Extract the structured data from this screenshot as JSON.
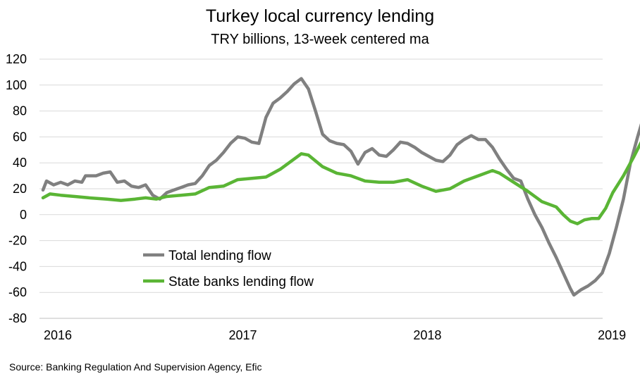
{
  "chart_data": {
    "type": "line",
    "title": "Turkey local currency lending",
    "subtitle": "TRY billions, 13-week centered ma",
    "xlabel": "",
    "ylabel": "",
    "ylim": [
      -80,
      120
    ],
    "yticks": [
      120,
      100,
      80,
      60,
      40,
      20,
      0,
      -20,
      -40,
      -60,
      -80
    ],
    "yticks_labels": [
      "120",
      "100",
      "80",
      "60",
      "40",
      "20",
      "0",
      "-20",
      "-40",
      "-60",
      "-80"
    ],
    "xlim": [
      "2016-01-01",
      "2019-03-01"
    ],
    "xtick_labels": [
      {
        "label": "2016",
        "date": "2016-01-01"
      },
      {
        "label": "2017",
        "date": "2017-01-01"
      },
      {
        "label": "2018",
        "date": "2018-01-01"
      },
      {
        "label": "2019",
        "date": "2019-01-01"
      }
    ],
    "grid": true,
    "legend_position": "lower-left",
    "series": [
      {
        "name": "Total lending flow",
        "color": "#808080",
        "points": [
          [
            "2016-01-01",
            19
          ],
          [
            "2016-01-08",
            26
          ],
          [
            "2016-01-22",
            23
          ],
          [
            "2016-02-05",
            25
          ],
          [
            "2016-02-19",
            23
          ],
          [
            "2016-03-04",
            26
          ],
          [
            "2016-03-18",
            25
          ],
          [
            "2016-03-25",
            30
          ],
          [
            "2016-04-15",
            30
          ],
          [
            "2016-04-29",
            32
          ],
          [
            "2016-05-13",
            33
          ],
          [
            "2016-05-27",
            25
          ],
          [
            "2016-06-10",
            26
          ],
          [
            "2016-06-24",
            22
          ],
          [
            "2016-07-08",
            21
          ],
          [
            "2016-07-22",
            23
          ],
          [
            "2016-08-05",
            15
          ],
          [
            "2016-08-19",
            12
          ],
          [
            "2016-09-02",
            17
          ],
          [
            "2016-09-16",
            19
          ],
          [
            "2016-09-30",
            21
          ],
          [
            "2016-10-14",
            23
          ],
          [
            "2016-10-28",
            24
          ],
          [
            "2016-11-11",
            30
          ],
          [
            "2016-11-25",
            38
          ],
          [
            "2016-12-09",
            42
          ],
          [
            "2016-12-23",
            48
          ],
          [
            "2017-01-06",
            55
          ],
          [
            "2017-01-20",
            60
          ],
          [
            "2017-02-03",
            59
          ],
          [
            "2017-02-17",
            56
          ],
          [
            "2017-03-03",
            55
          ],
          [
            "2017-03-17",
            75
          ],
          [
            "2017-03-31",
            86
          ],
          [
            "2017-04-14",
            90
          ],
          [
            "2017-04-28",
            95
          ],
          [
            "2017-05-12",
            101
          ],
          [
            "2017-05-26",
            105
          ],
          [
            "2017-06-09",
            97
          ],
          [
            "2017-06-23",
            80
          ],
          [
            "2017-07-07",
            62
          ],
          [
            "2017-07-21",
            57
          ],
          [
            "2017-08-04",
            55
          ],
          [
            "2017-08-18",
            54
          ],
          [
            "2017-09-01",
            49
          ],
          [
            "2017-09-15",
            39
          ],
          [
            "2017-09-29",
            48
          ],
          [
            "2017-10-13",
            51
          ],
          [
            "2017-10-27",
            46
          ],
          [
            "2017-11-10",
            45
          ],
          [
            "2017-11-24",
            50
          ],
          [
            "2017-12-08",
            56
          ],
          [
            "2017-12-22",
            55
          ],
          [
            "2018-01-05",
            52
          ],
          [
            "2018-01-19",
            48
          ],
          [
            "2018-02-02",
            45
          ],
          [
            "2018-02-16",
            42
          ],
          [
            "2018-03-02",
            41
          ],
          [
            "2018-03-16",
            46
          ],
          [
            "2018-03-30",
            54
          ],
          [
            "2018-04-13",
            58
          ],
          [
            "2018-04-27",
            61
          ],
          [
            "2018-05-11",
            58
          ],
          [
            "2018-05-25",
            58
          ],
          [
            "2018-06-08",
            52
          ],
          [
            "2018-06-22",
            43
          ],
          [
            "2018-07-06",
            35
          ],
          [
            "2018-07-20",
            28
          ],
          [
            "2018-08-03",
            26
          ],
          [
            "2018-08-17",
            12
          ],
          [
            "2018-08-31",
            0
          ],
          [
            "2018-09-14",
            -10
          ],
          [
            "2018-09-28",
            -22
          ],
          [
            "2018-10-12",
            -33
          ],
          [
            "2018-10-26",
            -45
          ],
          [
            "2018-11-09",
            -57
          ],
          [
            "2018-11-16",
            -62
          ],
          [
            "2018-11-30",
            -58
          ],
          [
            "2018-12-14",
            -55
          ],
          [
            "2018-12-28",
            -51
          ],
          [
            "2019-01-11",
            -45
          ],
          [
            "2019-01-25",
            -30
          ],
          [
            "2019-02-08",
            -10
          ],
          [
            "2019-02-22",
            12
          ],
          [
            "2019-03-08",
            40
          ],
          [
            "2019-03-22",
            60
          ],
          [
            "2019-04-01",
            73
          ]
        ]
      },
      {
        "name": "State banks lending flow",
        "color": "#5ab535",
        "points": [
          [
            "2016-01-01",
            13
          ],
          [
            "2016-01-15",
            16
          ],
          [
            "2016-02-05",
            15
          ],
          [
            "2016-03-04",
            14
          ],
          [
            "2016-04-01",
            13
          ],
          [
            "2016-05-06",
            12
          ],
          [
            "2016-06-03",
            11
          ],
          [
            "2016-07-01",
            12
          ],
          [
            "2016-07-22",
            13
          ],
          [
            "2016-08-12",
            12
          ],
          [
            "2016-09-02",
            14
          ],
          [
            "2016-09-30",
            15
          ],
          [
            "2016-10-28",
            16
          ],
          [
            "2016-11-25",
            21
          ],
          [
            "2016-12-23",
            22
          ],
          [
            "2017-01-20",
            27
          ],
          [
            "2017-02-17",
            28
          ],
          [
            "2017-03-17",
            29
          ],
          [
            "2017-04-14",
            35
          ],
          [
            "2017-05-12",
            43
          ],
          [
            "2017-05-26",
            47
          ],
          [
            "2017-06-09",
            46
          ],
          [
            "2017-07-07",
            37
          ],
          [
            "2017-08-04",
            32
          ],
          [
            "2017-09-01",
            30
          ],
          [
            "2017-09-29",
            26
          ],
          [
            "2017-10-27",
            25
          ],
          [
            "2017-11-24",
            25
          ],
          [
            "2017-12-22",
            27
          ],
          [
            "2018-01-19",
            22
          ],
          [
            "2018-02-16",
            18
          ],
          [
            "2018-03-16",
            20
          ],
          [
            "2018-04-13",
            26
          ],
          [
            "2018-05-11",
            30
          ],
          [
            "2018-06-08",
            34
          ],
          [
            "2018-06-22",
            32
          ],
          [
            "2018-07-20",
            25
          ],
          [
            "2018-08-17",
            18
          ],
          [
            "2018-09-14",
            10
          ],
          [
            "2018-10-12",
            6
          ],
          [
            "2018-10-26",
            0
          ],
          [
            "2018-11-09",
            -5
          ],
          [
            "2018-11-23",
            -7
          ],
          [
            "2018-12-07",
            -4
          ],
          [
            "2018-12-21",
            -3
          ],
          [
            "2019-01-04",
            -3
          ],
          [
            "2019-01-18",
            5
          ],
          [
            "2019-02-01",
            17
          ],
          [
            "2019-02-22",
            30
          ],
          [
            "2019-03-15",
            45
          ],
          [
            "2019-04-01",
            58
          ]
        ]
      }
    ],
    "source": "Source: Banking Regulation And Supervision Agency, Efic"
  }
}
